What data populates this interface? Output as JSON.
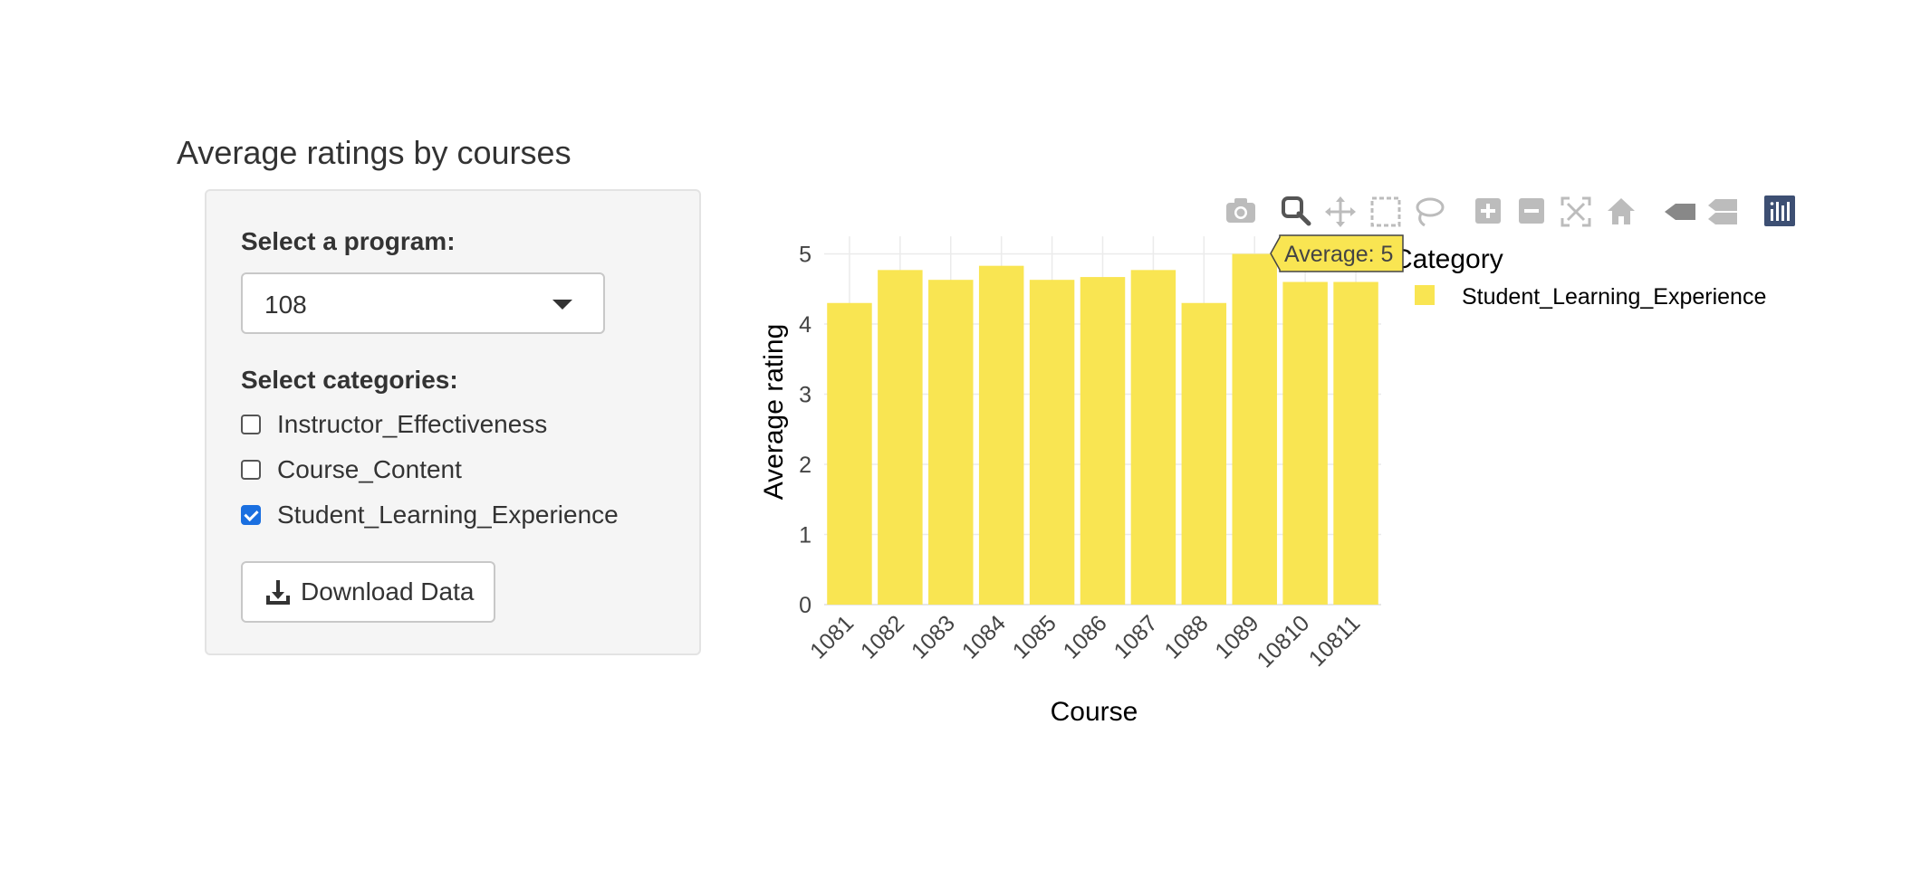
{
  "page": {
    "title": "Average ratings by courses"
  },
  "sidebar": {
    "program_label": "Select a program:",
    "program_value": "108",
    "categories_label": "Select categories:",
    "categories": [
      {
        "label": "Instructor_Effectiveness",
        "checked": false
      },
      {
        "label": "Course_Content",
        "checked": false
      },
      {
        "label": "Student_Learning_Experience",
        "checked": true
      }
    ],
    "download_label": "Download Data"
  },
  "modebar": {
    "icons": [
      "camera-icon",
      "zoom-icon",
      "pan-icon",
      "box-select-icon",
      "lasso-icon",
      "zoom-in-icon",
      "zoom-out-icon",
      "autoscale-icon",
      "reset-axes-icon",
      "hover-closest-icon",
      "hover-compare-icon",
      "plotly-logo-icon"
    ]
  },
  "tooltip": {
    "text": "Average: 5"
  },
  "chart_data": {
    "type": "bar",
    "categories": [
      "1081",
      "1082",
      "1083",
      "1084",
      "1085",
      "1086",
      "1087",
      "1088",
      "1089",
      "10810",
      "10811"
    ],
    "series": [
      {
        "name": "Student_Learning_Experience",
        "color": "#f9e552",
        "values": [
          4.3,
          4.77,
          4.63,
          4.83,
          4.63,
          4.67,
          4.77,
          4.3,
          5.0,
          4.6,
          4.6
        ]
      }
    ],
    "xlabel": "Course",
    "ylabel": "Average rating",
    "ylim": [
      0,
      5.25
    ],
    "yticks": [
      0,
      1,
      2,
      3,
      4,
      5
    ],
    "legend_title": "Category",
    "legend_position": "right",
    "grid": true
  }
}
